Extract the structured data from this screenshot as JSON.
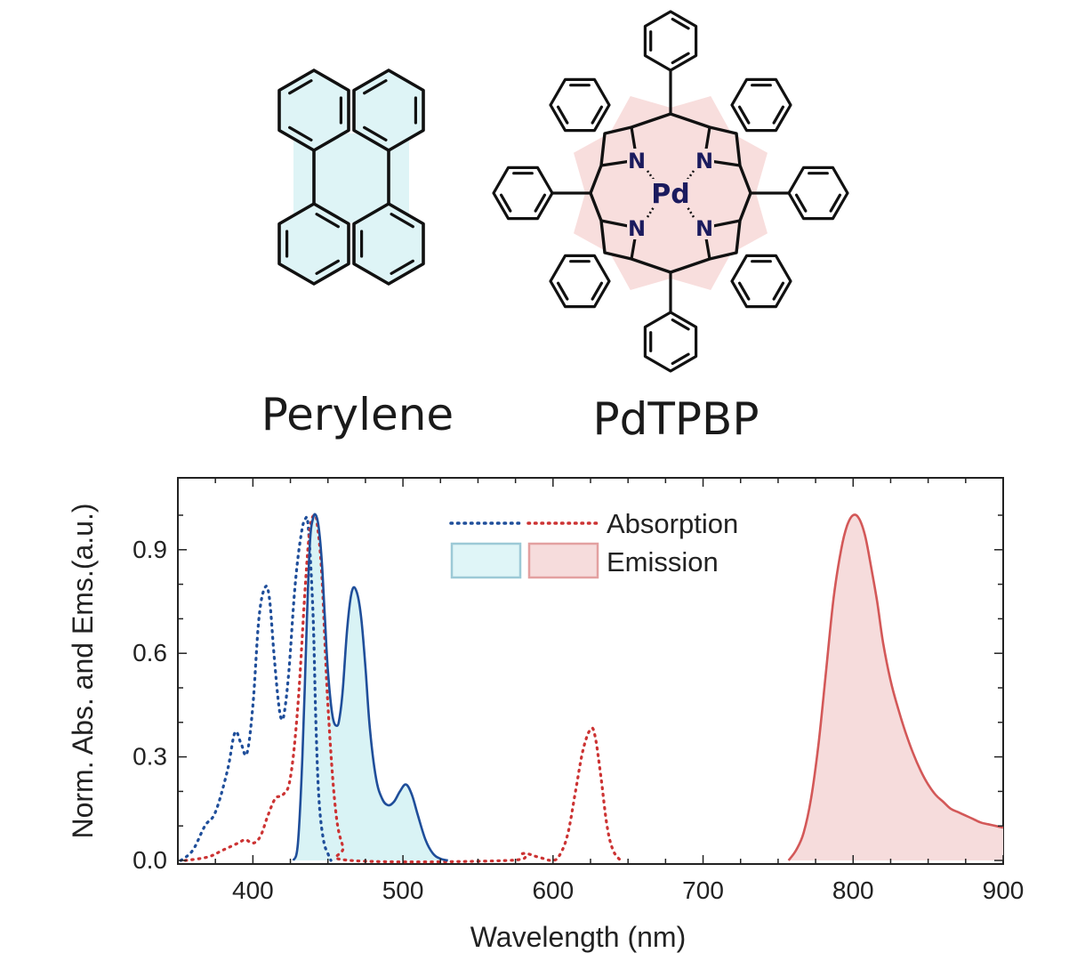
{
  "molecules": {
    "left": {
      "name": "Perylene"
    },
    "right": {
      "name": "PdTPBP",
      "metal": "Pd",
      "nitrogen": "N"
    }
  },
  "chart_data": {
    "type": "line",
    "xlabel": "Wavelength (nm)",
    "ylabel": "Norm. Abs. and Ems.(a.u.)",
    "xlim": [
      350,
      900
    ],
    "ylim": [
      0,
      1.08
    ],
    "xticks": [
      400,
      500,
      600,
      700,
      800,
      900
    ],
    "xtick_labels": [
      "400",
      "500",
      "600",
      "700",
      "800",
      "900"
    ],
    "yticks": [
      0,
      0.3,
      0.6,
      0.9
    ],
    "ytick_labels": [
      "0.0",
      "0.3",
      "0.6",
      "0.9"
    ],
    "grid": false,
    "legend": {
      "position": "top-center",
      "entries": [
        {
          "label": "Absorption",
          "style": "dotted",
          "colors": [
            "#1f4e9a",
            "#cc3333"
          ]
        },
        {
          "label": "Emission",
          "style": "filled",
          "colors": [
            "#a8d8e0",
            "#e6a3a3"
          ]
        }
      ]
    },
    "series": [
      {
        "kind": "absorption",
        "color": "#1f4e9a",
        "style": "dotted",
        "x": [
          352,
          360,
          368,
          375,
          383,
          388,
          392,
          396,
          400,
          404,
          408,
          411,
          414,
          417,
          419,
          421,
          424,
          428,
          432,
          435,
          437,
          440,
          442,
          444,
          447,
          450,
          452
        ],
        "y": [
          0.0,
          0.03,
          0.1,
          0.14,
          0.26,
          0.37,
          0.34,
          0.31,
          0.45,
          0.7,
          0.79,
          0.76,
          0.6,
          0.46,
          0.41,
          0.43,
          0.55,
          0.79,
          0.94,
          0.99,
          0.96,
          0.72,
          0.4,
          0.18,
          0.06,
          0.02,
          0.0
        ]
      },
      {
        "kind": "absorption",
        "color": "#cc3333",
        "style": "dotted",
        "x": [
          355,
          370,
          380,
          390,
          395,
          400,
          405,
          410,
          415,
          420,
          425,
          430,
          435,
          438,
          441,
          443,
          446,
          450,
          455,
          460,
          465,
          570,
          580,
          590,
          600,
          605,
          610,
          615,
          620,
          625,
          628,
          632,
          636,
          640,
          645
        ],
        "y": [
          0.0,
          0.01,
          0.03,
          0.05,
          0.06,
          0.05,
          0.07,
          0.13,
          0.18,
          0.19,
          0.24,
          0.45,
          0.8,
          0.96,
          1.0,
          0.97,
          0.82,
          0.45,
          0.15,
          0.04,
          0.0,
          0.0,
          0.02,
          0.01,
          0.0,
          0.02,
          0.08,
          0.2,
          0.32,
          0.38,
          0.36,
          0.24,
          0.1,
          0.03,
          0.0
        ]
      },
      {
        "kind": "emission",
        "color": "#1f4e9a",
        "fill": "#d9f3f5",
        "x": [
          427,
          430,
          433,
          436,
          438,
          440,
          442,
          444,
          446,
          448,
          450,
          453,
          456,
          458,
          460,
          463,
          466,
          469,
          472,
          475,
          478,
          482,
          486,
          490,
          494,
          498,
          502,
          506,
          510,
          515,
          520,
          525,
          530
        ],
        "y": [
          0.0,
          0.05,
          0.3,
          0.7,
          0.92,
          0.99,
          1.0,
          0.96,
          0.86,
          0.7,
          0.55,
          0.42,
          0.39,
          0.42,
          0.5,
          0.68,
          0.78,
          0.78,
          0.71,
          0.56,
          0.38,
          0.24,
          0.18,
          0.16,
          0.17,
          0.2,
          0.22,
          0.19,
          0.13,
          0.06,
          0.02,
          0.005,
          0.0
        ]
      },
      {
        "kind": "emission",
        "color": "#d35858",
        "fill": "#f6dcdc",
        "x": [
          757,
          762,
          767,
          772,
          777,
          782,
          787,
          792,
          796,
          800,
          804,
          808,
          812,
          816,
          820,
          825,
          830,
          835,
          840,
          845,
          850,
          855,
          860,
          865,
          870,
          875,
          880,
          885,
          890,
          895,
          900
        ],
        "y": [
          0.0,
          0.03,
          0.08,
          0.18,
          0.34,
          0.55,
          0.76,
          0.9,
          0.97,
          1.0,
          0.99,
          0.94,
          0.85,
          0.75,
          0.63,
          0.52,
          0.44,
          0.37,
          0.31,
          0.26,
          0.22,
          0.19,
          0.17,
          0.15,
          0.14,
          0.13,
          0.12,
          0.11,
          0.105,
          0.1,
          0.095
        ]
      }
    ]
  }
}
